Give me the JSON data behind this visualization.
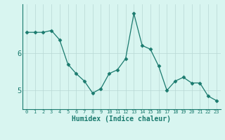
{
  "x": [
    0,
    1,
    2,
    3,
    4,
    5,
    6,
    7,
    8,
    9,
    10,
    11,
    12,
    13,
    14,
    15,
    16,
    17,
    18,
    19,
    20,
    21,
    22,
    23
  ],
  "y": [
    6.55,
    6.55,
    6.55,
    6.6,
    6.35,
    5.7,
    5.45,
    5.25,
    4.93,
    5.05,
    5.45,
    5.55,
    5.85,
    7.05,
    6.2,
    6.1,
    5.65,
    5.0,
    5.25,
    5.35,
    5.2,
    5.2,
    4.85,
    4.73
  ],
  "line_color": "#1a7a6e",
  "marker": "D",
  "marker_size": 2.5,
  "bg_color": "#d8f5f0",
  "grid_color": "#b8d8d4",
  "xlabel": "Humidex (Indice chaleur)",
  "yticks": [
    5,
    6
  ],
  "ylim": [
    4.5,
    7.3
  ],
  "xlim": [
    -0.5,
    23.5
  ],
  "tick_color": "#1a7a6e",
  "label_fontsize": 7.0,
  "xtick_fontsize": 5.0,
  "ytick_fontsize": 7.5
}
